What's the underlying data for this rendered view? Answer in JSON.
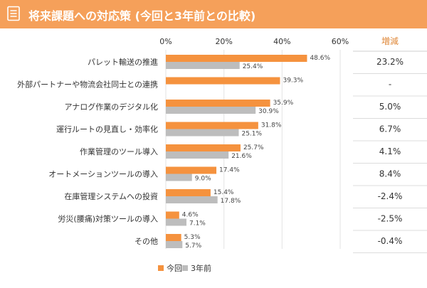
{
  "header": {
    "title": "将来課題への対応策 (今回と3年前との比較)",
    "bg_color": "#f5a05a"
  },
  "chart_data": {
    "type": "bar",
    "orientation": "horizontal",
    "title": "将来課題への対応策 (今回と3年前との比較)",
    "categories": [
      "パレット輸送の推進",
      "外部パートナーや物流会社同士との連携",
      "アナログ作業のデジタル化",
      "運行ルートの見直し・効率化",
      "作業管理のツール導入",
      "オートメーションツールの導入",
      "在庫管理システムへの投資",
      "労災(腰痛)対策ツールの導入",
      "その他"
    ],
    "series": [
      {
        "name": "今回",
        "color": "#f5923e",
        "values": [
          48.6,
          39.3,
          35.9,
          31.8,
          25.7,
          17.4,
          15.4,
          4.6,
          5.3
        ],
        "labels": [
          "48.6%",
          "39.3%",
          "35.9%",
          "31.8%",
          "25.7%",
          "17.4%",
          "15.4%",
          "4.6%",
          "5.3%"
        ]
      },
      {
        "name": "3年前",
        "color": "#bdbdbd",
        "values": [
          25.4,
          null,
          30.9,
          25.1,
          21.6,
          9.0,
          17.8,
          7.1,
          5.7
        ],
        "labels": [
          "25.4%",
          "",
          "30.9%",
          "25.1%",
          "21.6%",
          "9.0%",
          "17.8%",
          "7.1%",
          "5.7%"
        ]
      }
    ],
    "x_ticks": [
      "0%",
      "20%",
      "40%",
      "60%"
    ],
    "xlim": [
      0,
      60
    ],
    "legend_placement": "bottom",
    "diff": {
      "header": "増減",
      "values": [
        "23.2%",
        "-",
        "5.0%",
        "6.7%",
        "4.1%",
        "8.4%",
        "-2.4%",
        "-2.5%",
        "-0.4%"
      ]
    }
  }
}
